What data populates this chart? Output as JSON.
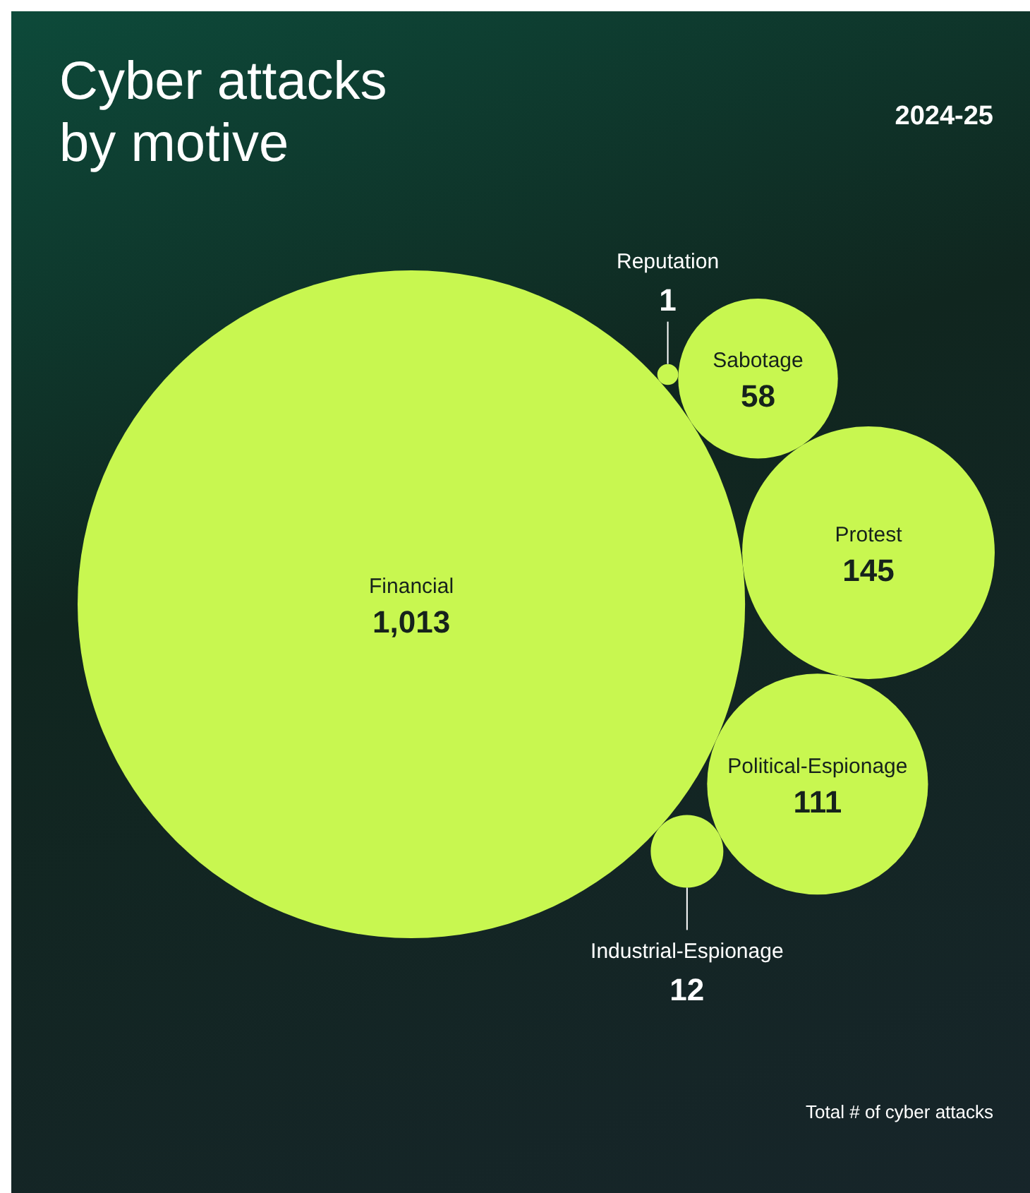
{
  "chart_data": {
    "type": "other",
    "title": "Cyber attacks by motive",
    "subtitle": "2024-25",
    "categories": [
      "Financial",
      "Reputation",
      "Sabotage",
      "Protest",
      "Political-Espionage",
      "Industrial-Espionage"
    ],
    "values": [
      1013,
      1,
      58,
      145,
      111,
      12
    ],
    "color": "#c8f750",
    "value_labels": [
      "1,013",
      "1",
      "58",
      "145",
      "111",
      "12"
    ],
    "annotations": [
      "Total # of cyber attacks"
    ]
  }
}
